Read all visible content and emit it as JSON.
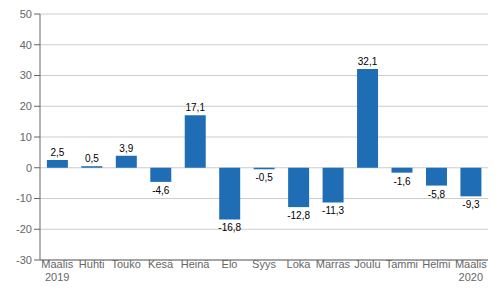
{
  "chart_data": {
    "type": "bar",
    "categories": [
      "Maalis\n2019",
      "Huhti",
      "Touko",
      "Kesä",
      "Heinä",
      "Elo",
      "Syys",
      "Loka",
      "Marras",
      "Joulu",
      "Tammi",
      "Helmi",
      "Maalis\n2020"
    ],
    "values": [
      2.5,
      0.5,
      3.9,
      -4.6,
      17.1,
      -16.8,
      -0.5,
      -12.8,
      -11.3,
      32.1,
      -1.6,
      -5.8,
      -9.3
    ],
    "value_labels": [
      "2,5",
      "0,5",
      "3,9",
      "-4,6",
      "17,1",
      "-16,8",
      "-0,5",
      "-12,8",
      "-11,3",
      "32,1",
      "-1,6",
      "-5,8",
      "-9,3"
    ],
    "color": "#1f6eb5",
    "ylim": [
      -30,
      50
    ],
    "yticks": [
      -30,
      -20,
      -10,
      0,
      10,
      20,
      30,
      40,
      50
    ],
    "grid": true,
    "data_labels": true
  }
}
